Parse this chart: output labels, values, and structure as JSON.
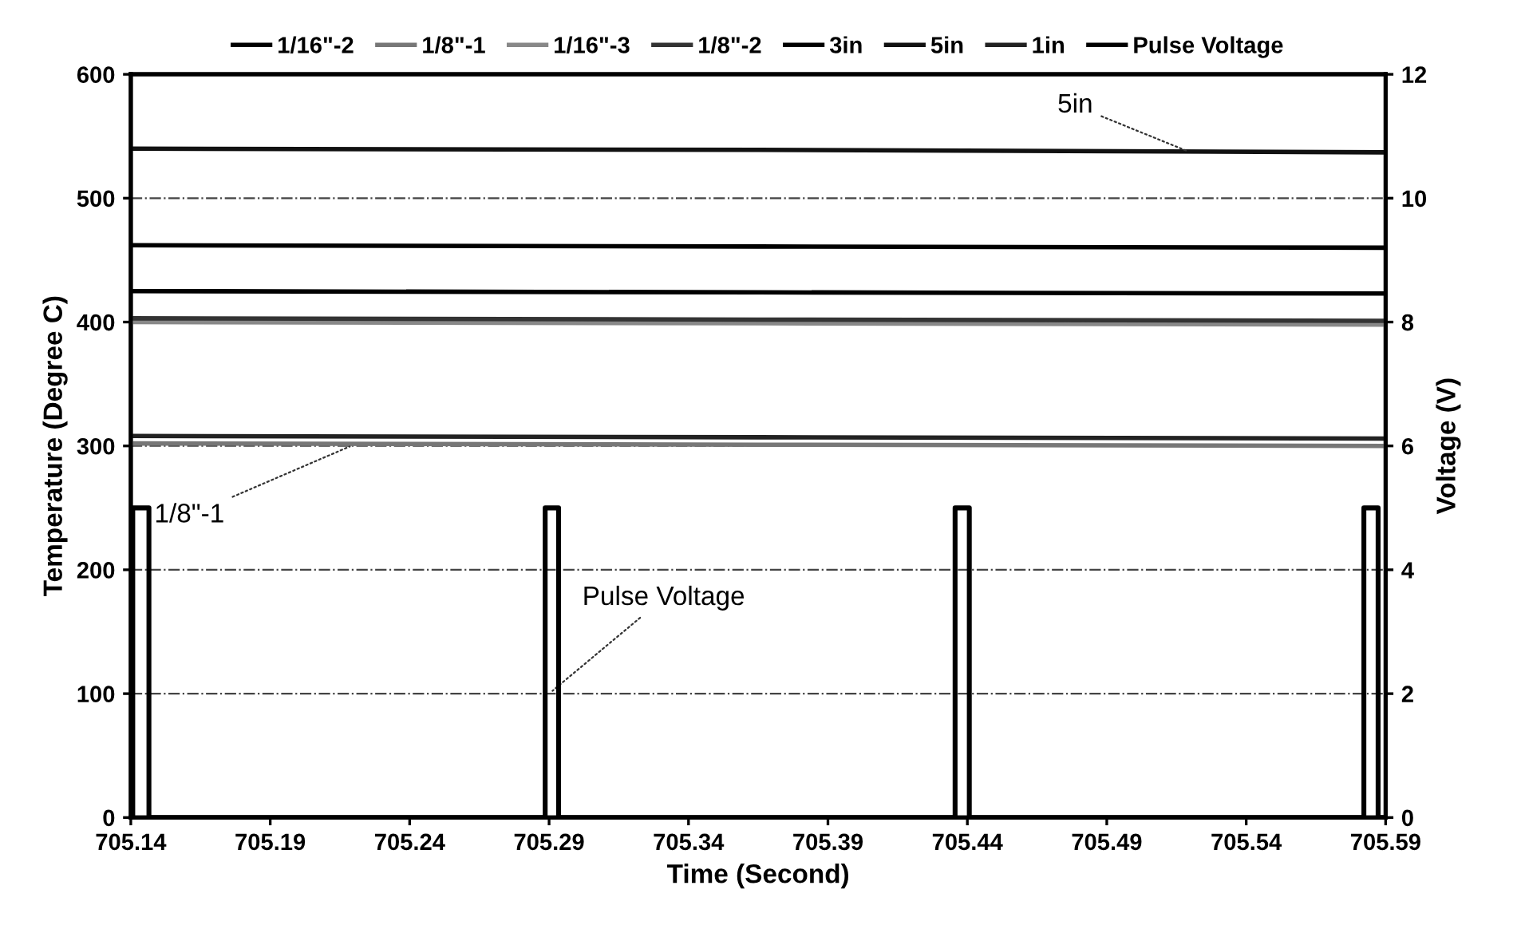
{
  "chart_data": {
    "type": "line",
    "xlabel": "Time (Second)",
    "ylabel": "Temperature (Degree C)",
    "y2label": "Voltage (V)",
    "xlim": [
      705.14,
      705.59
    ],
    "xticks": [
      705.14,
      705.19,
      705.24,
      705.29,
      705.34,
      705.39,
      705.44,
      705.49,
      705.54,
      705.59
    ],
    "ylim": [
      0,
      600
    ],
    "yticks": [
      0,
      100,
      200,
      300,
      400,
      500,
      600
    ],
    "y2lim": [
      0,
      12
    ],
    "y2ticks": [
      0,
      2,
      4,
      6,
      8,
      10,
      12
    ],
    "grid": "y",
    "legend": "top",
    "marker": "none",
    "series": [
      {
        "name": "1/16\"-2",
        "color": "#000000",
        "x": [
          705.14,
          705.365,
          705.59
        ],
        "values": [
          462,
          461,
          460
        ]
      },
      {
        "name": "1/8\"-1",
        "color": "#777777",
        "x": [
          705.14,
          705.365,
          705.59
        ],
        "values": [
          302,
          301,
          300
        ]
      },
      {
        "name": "1/16\"-3",
        "color": "#888888",
        "x": [
          705.14,
          705.365,
          705.59
        ],
        "values": [
          400,
          399,
          398
        ]
      },
      {
        "name": "1/8\"-2",
        "color": "#333333",
        "x": [
          705.14,
          705.365,
          705.59
        ],
        "values": [
          403,
          402,
          401
        ]
      },
      {
        "name": "3in",
        "color": "#000000",
        "x": [
          705.14,
          705.365,
          705.59
        ],
        "values": [
          425,
          424,
          423
        ]
      },
      {
        "name": "5in",
        "color": "#111111",
        "x": [
          705.14,
          705.365,
          705.59
        ],
        "values": [
          540,
          539,
          537
        ]
      },
      {
        "name": "1in",
        "color": "#222222",
        "x": [
          705.14,
          705.365,
          705.59
        ],
        "values": [
          308,
          307,
          306
        ]
      },
      {
        "name": "Pulse Voltage",
        "color": "#000000",
        "axis": "y2",
        "x": [
          705.14,
          705.1407,
          705.1407,
          705.1465,
          705.1465,
          705.2886,
          705.2886,
          705.2934,
          705.2934,
          705.4356,
          705.4356,
          705.4407,
          705.4407,
          705.5822,
          705.5822,
          705.5873,
          705.5873,
          705.59
        ],
        "values": [
          0,
          0,
          5,
          5,
          0,
          0,
          5,
          5,
          0,
          0,
          5,
          5,
          0,
          0,
          5,
          5,
          0,
          0
        ]
      }
    ],
    "annotations": [
      {
        "text": "5in",
        "x": 705.52,
        "y": 537
      },
      {
        "text": "1/8\"-1",
        "x": 705.22,
        "y": 301
      },
      {
        "text": "Pulse Voltage",
        "x": 705.29,
        "y": 100
      }
    ]
  }
}
